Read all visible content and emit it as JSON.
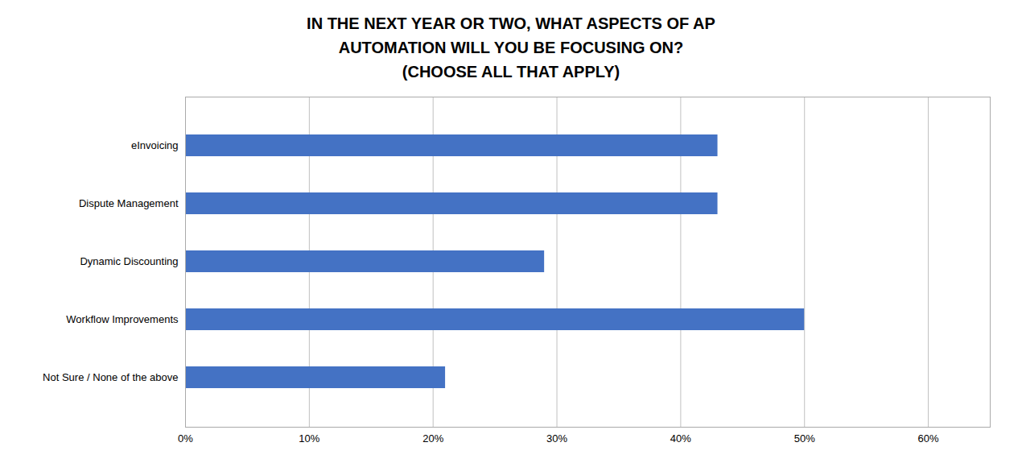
{
  "chart_data": {
    "type": "bar",
    "orientation": "horizontal",
    "title": "IN THE NEXT YEAR OR TWO, WHAT ASPECTS OF AP\nAUTOMATION WILL YOU BE FOCUSING ON?\n(CHOOSE ALL THAT APPLY)",
    "categories": [
      "Not Sure / None of the above",
      "Workflow Improvements",
      "Dynamic Discounting",
      "Dispute Management",
      "eInvoicing"
    ],
    "values": [
      0.21,
      0.5,
      0.29,
      0.43,
      0.43
    ],
    "color": "#4472C4",
    "xlim": [
      0,
      0.65
    ],
    "xticks": [
      {
        "value": 0.0,
        "label": "0%"
      },
      {
        "value": 0.1,
        "label": "10%"
      },
      {
        "value": 0.2,
        "label": "20%"
      },
      {
        "value": 0.3,
        "label": "30%"
      },
      {
        "value": 0.4,
        "label": "40%"
      },
      {
        "value": 0.5,
        "label": "50%"
      },
      {
        "value": 0.6,
        "label": "60%"
      }
    ],
    "grid": true
  }
}
